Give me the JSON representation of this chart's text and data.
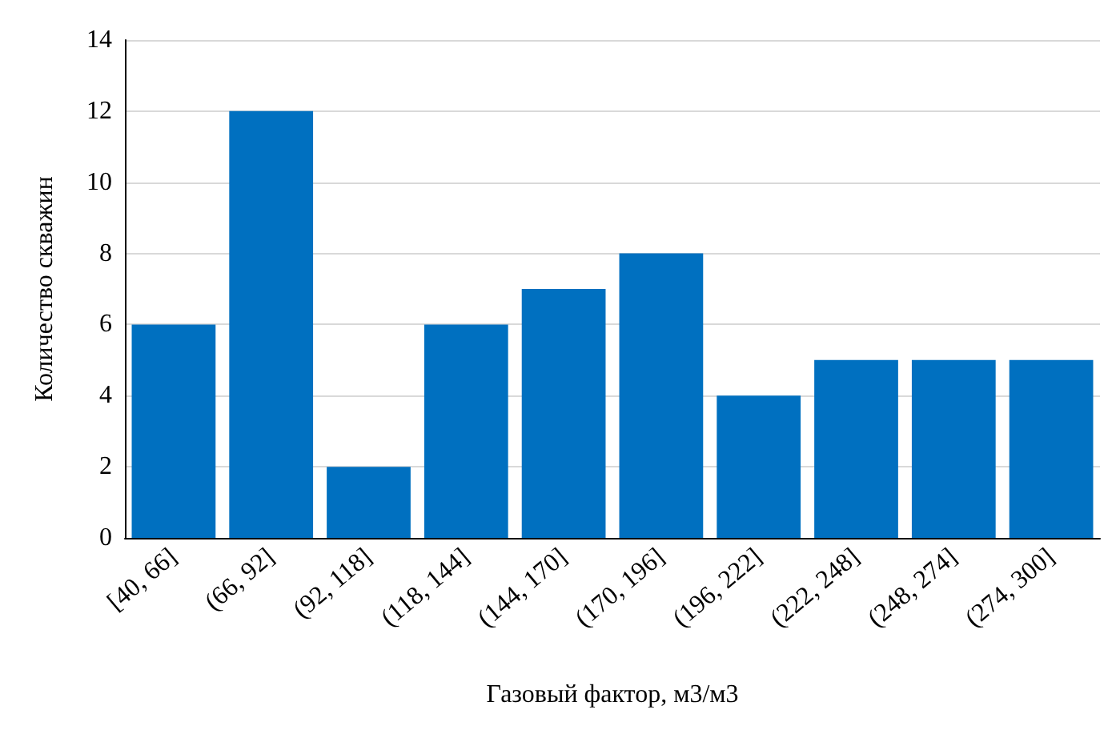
{
  "chart_data": {
    "type": "bar",
    "xlabel": "Газовый фактор, м3/м3",
    "ylabel": "Количество скважин",
    "categories": [
      "[40, 66]",
      "(66, 92]",
      "(92, 118]",
      "(118, 144]",
      "(144, 170]",
      "(170, 196]",
      "(196, 222]",
      "(222, 248]",
      "(248, 274]",
      "(274, 300]"
    ],
    "values": [
      6,
      12,
      2,
      6,
      7,
      8,
      4,
      5,
      5,
      5
    ],
    "color": "#0070c0",
    "ylim": [
      0,
      14
    ],
    "yticks": [
      0,
      2,
      4,
      6,
      8,
      10,
      12,
      14
    ],
    "grid": "y"
  }
}
